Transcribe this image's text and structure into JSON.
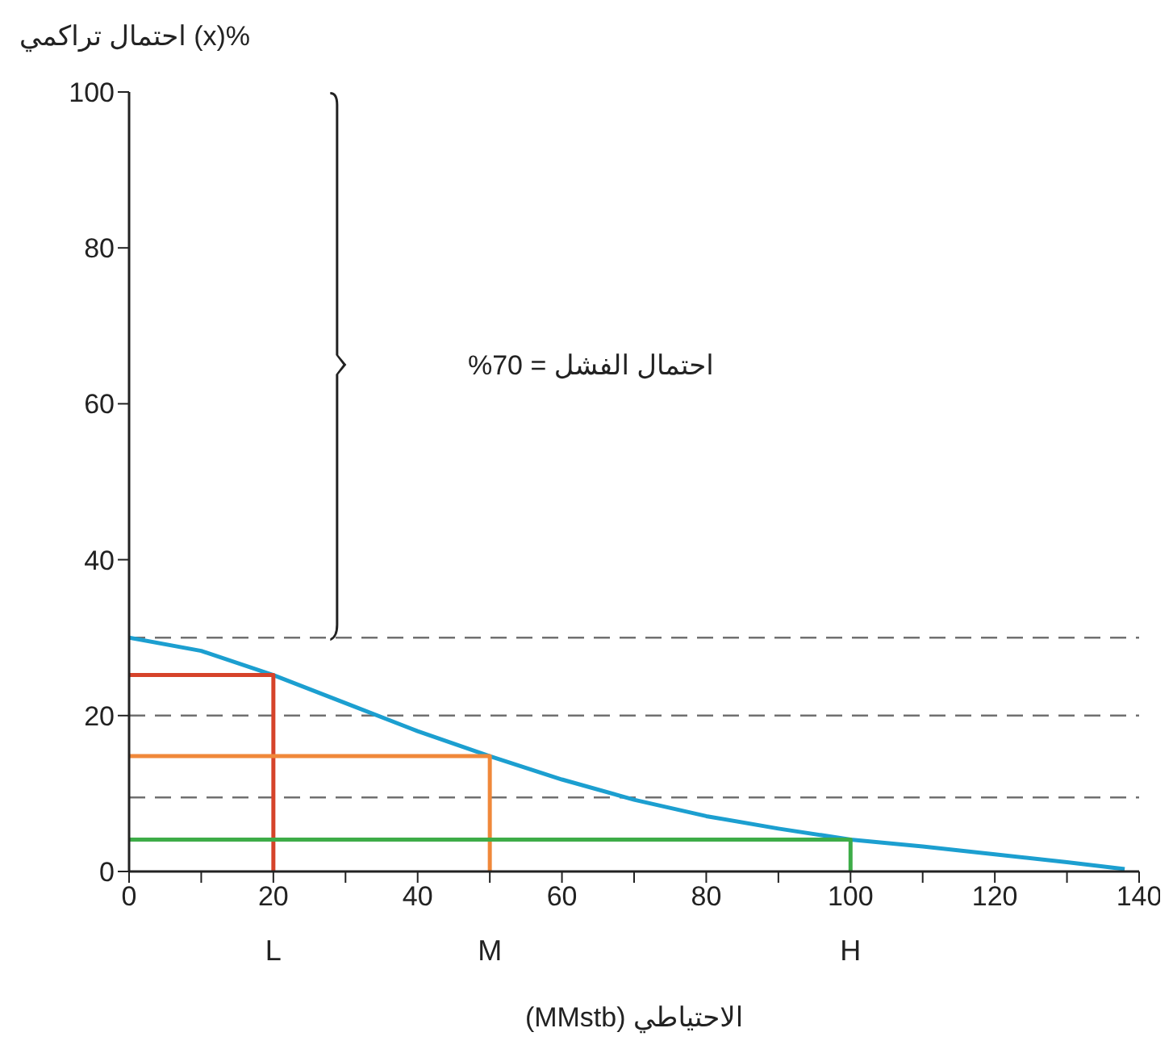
{
  "chart_data": {
    "type": "line",
    "ylabel": "احتمال تراكمي (x)%",
    "xlabel": "الاحتياطي (MMstb)",
    "annotations": [
      "احتمال الفشل = 70%",
      {
        "text": "L",
        "x": 20,
        "y": 0
      },
      {
        "text": "M",
        "x": 50,
        "y": 0
      },
      {
        "text": "H",
        "x": 100,
        "y": 0
      }
    ],
    "series": [
      {
        "color": "#1c9fd0",
        "x": [
          0,
          10,
          20,
          30,
          40,
          50,
          60,
          70,
          80,
          90,
          100,
          110,
          120,
          130,
          138
        ],
        "values": [
          30,
          28.3,
          25.2,
          21.6,
          18,
          14.8,
          11.8,
          9.2,
          7.1,
          5.5,
          4.1,
          3.2,
          2.2,
          1.2,
          0.3
        ]
      },
      {
        "color": "#d6432a",
        "x": [
          0,
          20,
          20
        ],
        "values": [
          25.2,
          25.2,
          0
        ]
      },
      {
        "color": "#f0883a",
        "x": [
          0,
          50,
          50
        ],
        "values": [
          14.8,
          14.8,
          0
        ]
      },
      {
        "color": "#3dac48",
        "x": [
          0,
          100,
          100
        ],
        "values": [
          4.1,
          4.1,
          0
        ]
      }
    ],
    "xlim": [
      0,
      140
    ],
    "ylim": [
      0,
      100
    ],
    "xticks": [
      0,
      {
        "value": 10,
        "label": null
      },
      20,
      {
        "value": 30,
        "label": null
      },
      40,
      {
        "value": 50,
        "label": null
      },
      60,
      {
        "value": 70,
        "label": null
      },
      80,
      {
        "value": 90,
        "label": null
      },
      100,
      {
        "value": 110,
        "label": null
      },
      120,
      {
        "value": 130,
        "label": null
      },
      140
    ],
    "yticks": [
      0,
      20,
      40,
      60,
      80,
      100
    ],
    "ref_lines": [
      {
        "axis": "y",
        "value": 30,
        "color": "#707070",
        "line_style": "dashed"
      },
      {
        "axis": "y",
        "value": 20,
        "color": "#707070",
        "line_style": "dashed"
      },
      {
        "axis": "y",
        "value": 9.5,
        "color": "#707070",
        "line_style": "dashed"
      }
    ],
    "grid": false,
    "legend": false,
    "marker": "none",
    "line_style": "solid"
  }
}
